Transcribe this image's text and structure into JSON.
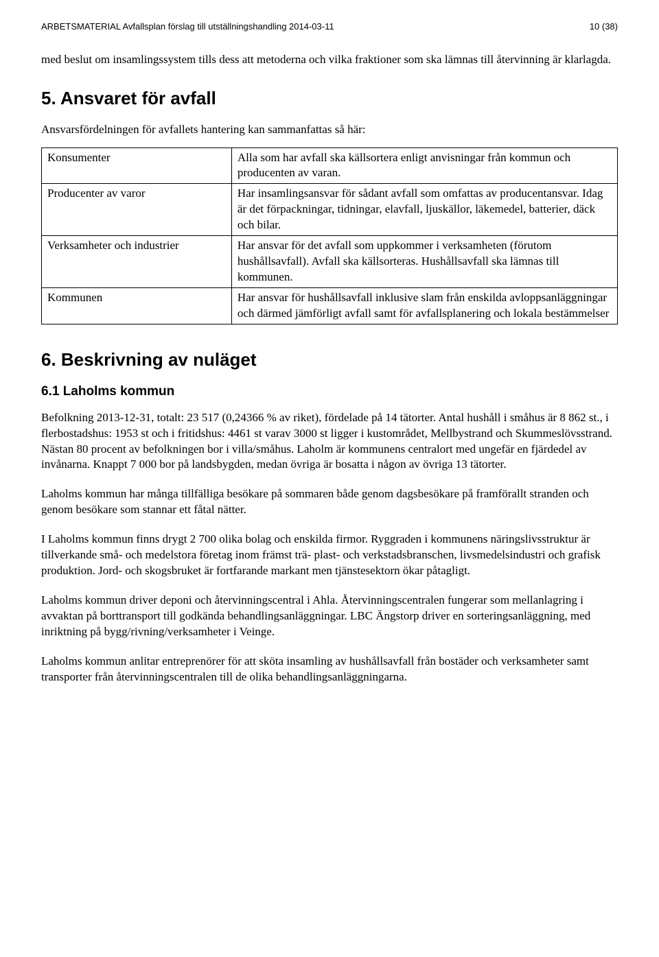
{
  "header": {
    "left": "ARBETSMATERIAL Avfallsplan förslag till utställningshandling 2014-03-11",
    "right": "10 (38)"
  },
  "intro": "med beslut om insamlingssystem tills dess att metoderna och vilka fraktioner som ska lämnas till återvinning är klarlagda.",
  "section5": {
    "title": "5. Ansvaret för avfall",
    "lead": "Ansvarsfördelningen för avfallets hantering kan sammanfattas så här:",
    "rows": [
      {
        "left": "Konsumenter",
        "right": "Alla som har avfall ska källsortera enligt anvisningar från kommun och producenten av varan."
      },
      {
        "left": "Producenter av varor",
        "right": "Har insamlingsansvar för sådant avfall som omfattas av producentansvar. Idag är det förpackningar, tidningar, elavfall, ljuskällor, läkemedel, batterier, däck och bilar."
      },
      {
        "left": "Verksamheter och industrier",
        "right": "Har ansvar för det avfall som uppkommer i verksamheten (förutom hushållsavfall). Avfall ska källsorteras. Hushållsavfall ska lämnas till kommunen."
      },
      {
        "left": "Kommunen",
        "right": "Har ansvar för hushållsavfall inklusive slam från enskilda avloppsanläggningar och därmed jämförligt avfall samt för avfallsplanering och lokala bestämmelser"
      }
    ]
  },
  "section6": {
    "title": "6. Beskrivning av nuläget",
    "sub61": {
      "title": "6.1 Laholms kommun",
      "paras": [
        "Befolkning 2013-12-31, totalt: 23 517 (0,24366 % av riket), fördelade på 14 tätorter. Antal hushåll i småhus är 8 862 st., i flerbostadshus: 1953 st och i fritidshus: 4461 st varav 3000 st ligger i kustområdet, Mellbystrand och Skummeslövsstrand. Nästan 80 procent av befolkningen bor i villa/småhus. Laholm är kommunens centralort med ungefär en fjärdedel av invånarna. Knappt 7 000 bor på landsbygden, medan övriga är bosatta i någon av övriga 13 tätorter.",
        "Laholms kommun har många tillfälliga besökare på sommaren både genom dagsbesökare på framförallt stranden och genom besökare som stannar ett fåtal nätter.",
        "I Laholms kommun finns drygt 2 700 olika bolag och enskilda firmor. Ryggraden i kommunens näringslivsstruktur är tillverkande små- och medelstora företag inom främst trä- plast- och verkstadsbranschen, livsmedelsindustri och grafisk produktion. Jord- och skogsbruket är fortfarande markant men tjänstesektorn ökar påtagligt.",
        "Laholms kommun driver deponi och återvinningscentral i Ahla. Återvinningscentralen fungerar som mellanlagring i avvaktan på borttransport till godkända behandlingsanläggningar. LBC Ängstorp driver en sorteringsanläggning, med inriktning på bygg/rivning/verksamheter i Veinge.",
        "Laholms kommun anlitar entreprenörer för att sköta insamling av hushållsavfall från bostäder och verksamheter samt transporter från återvinningscentralen till de olika behandlingsanläggningarna."
      ]
    }
  }
}
